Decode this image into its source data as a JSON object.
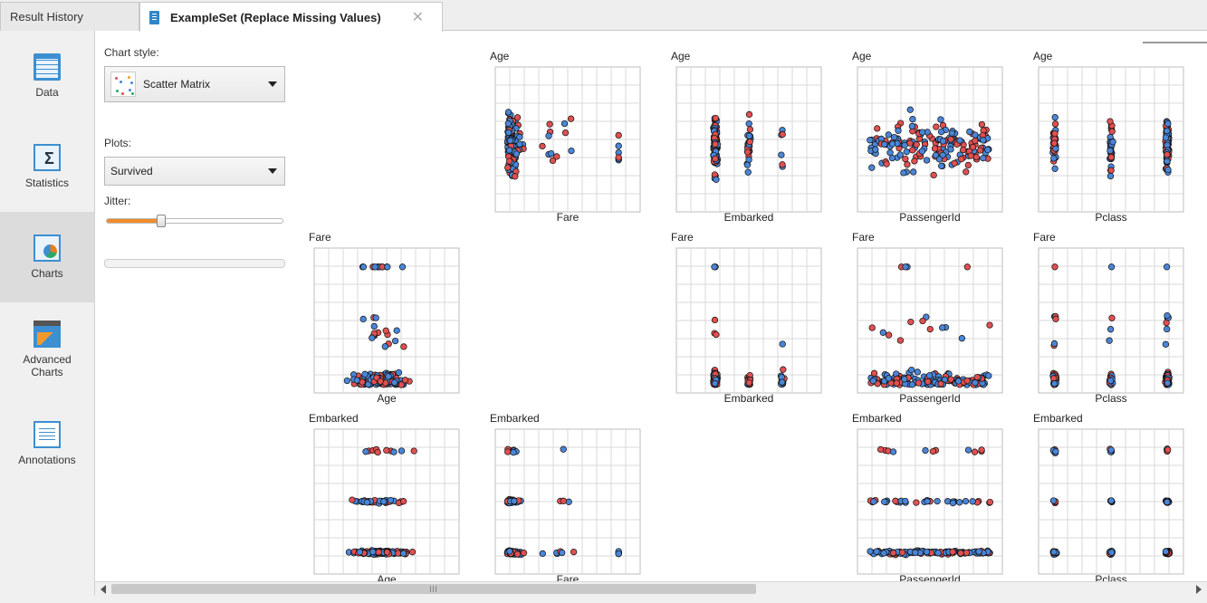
{
  "tabs": [
    {
      "label": "Result History",
      "active": false
    },
    {
      "label": "ExampleSet (Replace Missing Values)",
      "active": true
    }
  ],
  "nav": {
    "items": [
      {
        "label": "Data",
        "icon": "data-table-icon",
        "selected": false
      },
      {
        "label": "Statistics",
        "icon": "statistics-sigma-icon",
        "selected": false
      },
      {
        "label": "Charts",
        "icon": "charts-icon",
        "selected": true
      },
      {
        "label": "Advanced Charts",
        "icon": "advanced-charts-icon",
        "selected": false
      },
      {
        "label": "Annotations",
        "icon": "annotations-icon",
        "selected": false
      }
    ]
  },
  "options": {
    "chart_style_label": "Chart style:",
    "chart_style_value": "Scatter Matrix",
    "plots_label": "Plots:",
    "plots_value": "Survived",
    "jitter_label": "Jitter:",
    "jitter_level": 0.31
  },
  "colors": {
    "class_a": "#e05050",
    "class_b": "#4a86d8",
    "accent": "#f08b2a"
  },
  "chart_data": {
    "type": "scatter",
    "style": "scatter-matrix",
    "color_by": "Survived",
    "attributes_order": [
      "Age",
      "Fare",
      "Embarked",
      "PassengerId",
      "Pclass"
    ],
    "rows": [
      "Age",
      "Fare",
      "Embarked"
    ],
    "columns": [
      "Age",
      "Fare",
      "Embarked",
      "PassengerId",
      "Pclass"
    ],
    "panels": [
      {
        "y": "Age",
        "x": "Fare"
      },
      {
        "y": "Age",
        "x": "Embarked"
      },
      {
        "y": "Age",
        "x": "PassengerId"
      },
      {
        "y": "Age",
        "x": "Pclass"
      },
      {
        "y": "Fare",
        "x": "Age"
      },
      {
        "y": "Fare",
        "x": "Embarked"
      },
      {
        "y": "Fare",
        "x": "PassengerId"
      },
      {
        "y": "Fare",
        "x": "Pclass"
      },
      {
        "y": "Embarked",
        "x": "Age"
      },
      {
        "y": "Embarked",
        "x": "Fare"
      },
      {
        "y": "Embarked",
        "x": "PassengerId"
      },
      {
        "y": "Embarked",
        "x": "Pclass"
      }
    ],
    "grid": true,
    "legend": "none"
  }
}
